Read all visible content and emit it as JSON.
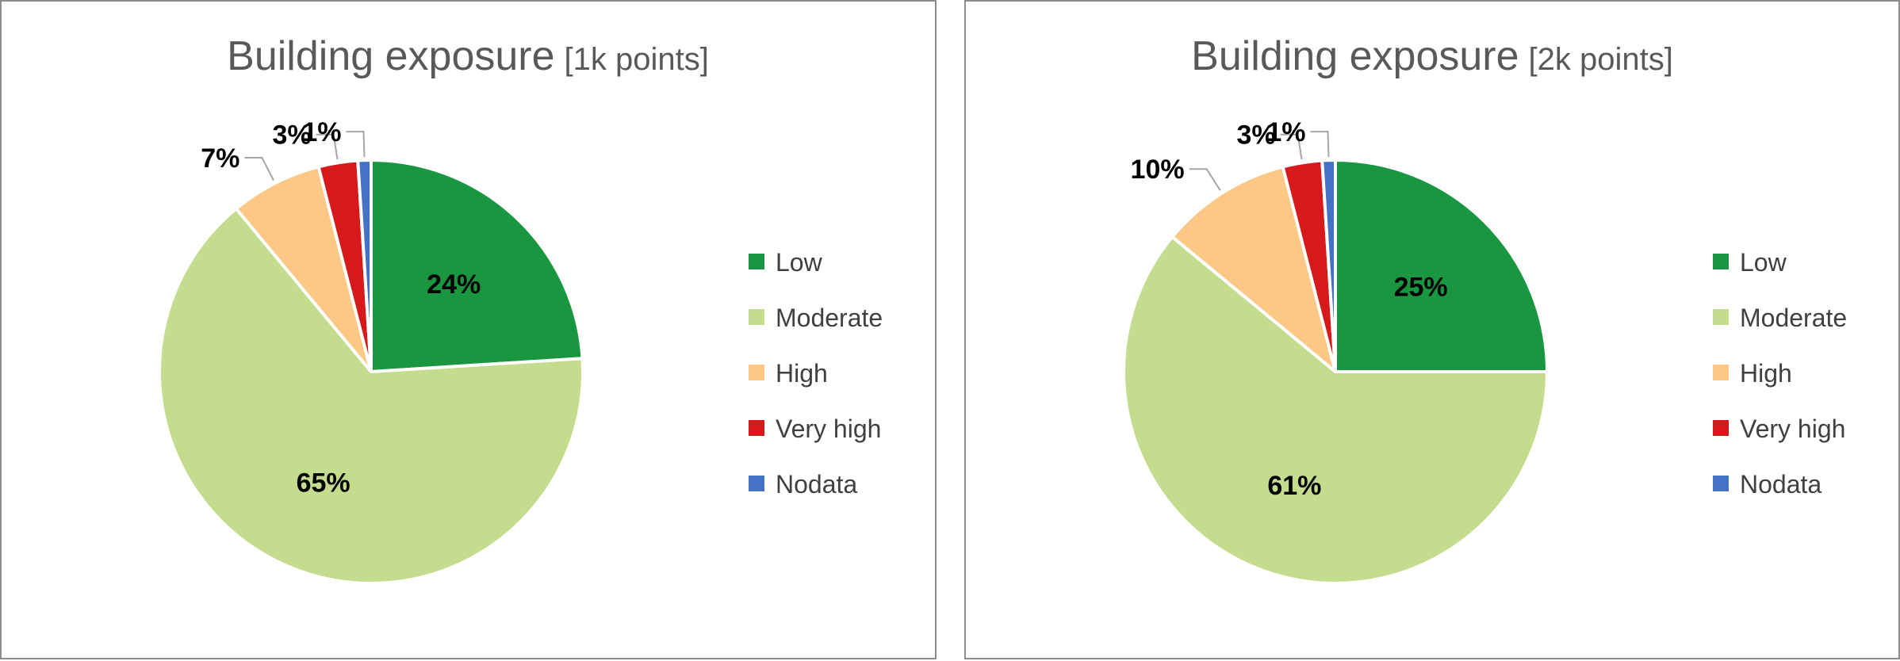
{
  "chart_data": [
    {
      "type": "pie",
      "title": "Building exposure",
      "subtitle": "[1k points]",
      "categories": [
        "Low",
        "Moderate",
        "High",
        "Very high",
        "Nodata"
      ],
      "values": [
        24,
        65,
        7,
        3,
        1
      ],
      "labels": [
        "24%",
        "65%",
        "7%",
        "3%",
        "1%"
      ],
      "colors": [
        "#1a9641",
        "#c4dc8d",
        "#fdc785",
        "#d7191c",
        "#4472c4"
      ],
      "legend_position": "right"
    },
    {
      "type": "pie",
      "title": "Building exposure",
      "subtitle": "[2k points]",
      "categories": [
        "Low",
        "Moderate",
        "High",
        "Very high",
        "Nodata"
      ],
      "values": [
        25,
        61,
        10,
        3,
        1
      ],
      "labels": [
        "25%",
        "61%",
        "10%",
        "3%",
        "1%"
      ],
      "colors": [
        "#1a9641",
        "#c4dc8d",
        "#fdc785",
        "#d7191c",
        "#4472c4"
      ],
      "legend_position": "right"
    }
  ]
}
